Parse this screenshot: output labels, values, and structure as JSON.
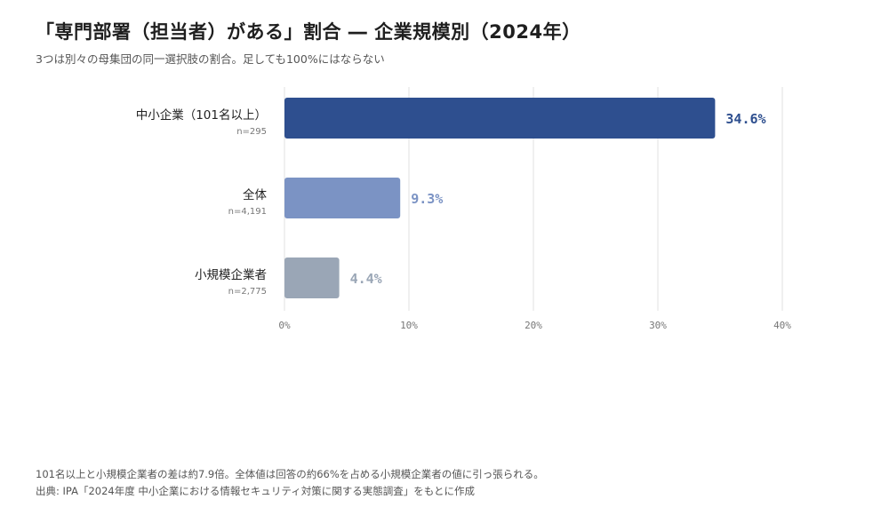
{
  "title": "「専門部署（担当者）がある」割合 ― 企業規模別（2024年）",
  "subtitle": "3つは別々の母集団の同一選択肢の割合。足しても100%にはならない",
  "chart_data": {
    "type": "bar",
    "orientation": "horizontal",
    "categories": [
      "中小企業（101名以上）",
      "全体",
      "小規模企業者"
    ],
    "sample_sizes": [
      "n=295",
      "n=4,191",
      "n=2,775"
    ],
    "values": [
      34.6,
      9.3,
      4.4
    ],
    "value_labels": [
      "34.6%",
      "9.3%",
      "4.4%"
    ],
    "colors": [
      "#2e4f8f",
      "#7b93c4",
      "#9aa6b6"
    ],
    "xlim": [
      0,
      40
    ],
    "xticks": [
      0,
      10,
      20,
      30,
      40
    ],
    "xtick_labels": [
      "0%",
      "10%",
      "20%",
      "30%",
      "40%"
    ],
    "grid": "vertical",
    "xlabel": "",
    "ylabel": ""
  },
  "footer": {
    "note": "101名以上と小規模企業者の差は約7.9倍。全体値は回答の約66%を占める小規模企業者の値に引っ張られる。",
    "source": "出典: IPA「2024年度 中小企業における情報セキュリティ対策に関する実態調査」をもとに作成"
  }
}
